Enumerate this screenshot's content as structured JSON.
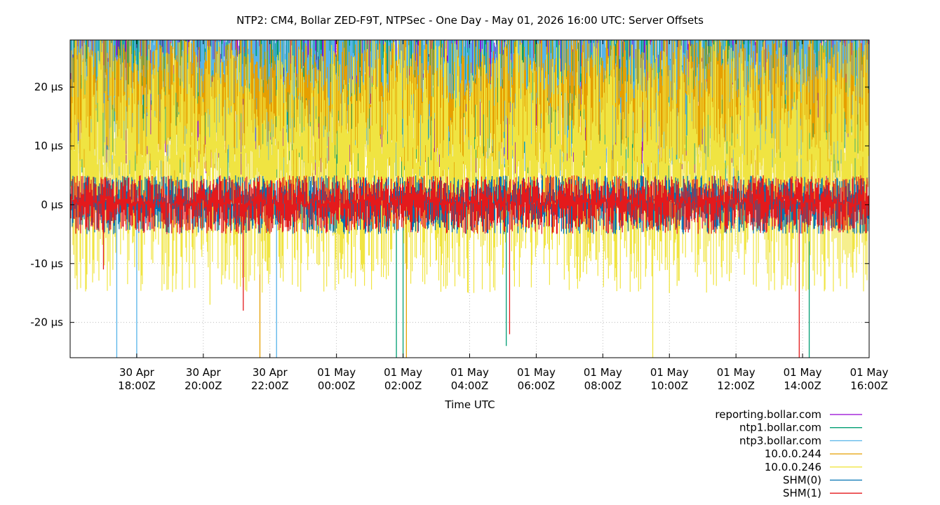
{
  "chart_data": {
    "type": "line",
    "title": "NTP2: CM4, Bollar ZED-F9T, NTPSec - One Day - May 01, 2026 16:00 UTC: Server Offsets",
    "xlabel": "Time UTC",
    "ylabel": "",
    "x_range": [
      "2026-04-30T16:00Z",
      "2026-05-01T16:00Z"
    ],
    "ylim": [
      -26,
      28
    ],
    "y_unit": "µs",
    "grid": true,
    "legend_position": "bottom-right",
    "x_ticks": [
      {
        "date": "30 Apr",
        "time": "18:00Z",
        "hours": 2
      },
      {
        "date": "30 Apr",
        "time": "20:00Z",
        "hours": 4
      },
      {
        "date": "30 Apr",
        "time": "22:00Z",
        "hours": 6
      },
      {
        "date": "01 May",
        "time": "00:00Z",
        "hours": 8
      },
      {
        "date": "01 May",
        "time": "02:00Z",
        "hours": 10
      },
      {
        "date": "01 May",
        "time": "04:00Z",
        "hours": 12
      },
      {
        "date": "01 May",
        "time": "06:00Z",
        "hours": 14
      },
      {
        "date": "01 May",
        "time": "08:00Z",
        "hours": 16
      },
      {
        "date": "01 May",
        "time": "10:00Z",
        "hours": 18
      },
      {
        "date": "01 May",
        "time": "12:00Z",
        "hours": 20
      },
      {
        "date": "01 May",
        "time": "14:00Z",
        "hours": 22
      },
      {
        "date": "01 May",
        "time": "16:00Z",
        "hours": 24
      }
    ],
    "y_ticks": [
      {
        "value": 20,
        "label": "20 µs"
      },
      {
        "value": 10,
        "label": "10 µs"
      },
      {
        "value": 0,
        "label": "0 µs"
      },
      {
        "value": -10,
        "label": "-10 µs"
      },
      {
        "value": -20,
        "label": "-20 µs"
      }
    ],
    "series": [
      {
        "name": "reporting.bollar.com",
        "color": "#9400d3",
        "band": [
          5,
          40
        ],
        "spike_down": [],
        "spike_down_hours": []
      },
      {
        "name": "ntp1.bollar.com",
        "color": "#009e73",
        "band": [
          4,
          36
        ],
        "spike_down": [
          -24,
          -26,
          -26,
          -26
        ],
        "spike_down_hours": [
          13.1,
          10.0,
          22.2,
          9.8
        ]
      },
      {
        "name": "ntp3.bollar.com",
        "color": "#56b4e9",
        "band": [
          4,
          36
        ],
        "spike_down": [
          -26,
          -26,
          -26
        ],
        "spike_down_hours": [
          1.4,
          2.0,
          6.2
        ]
      },
      {
        "name": "10.0.0.244",
        "color": "#e69f00",
        "band": [
          3,
          30
        ],
        "spike_down": [
          -26,
          -26
        ],
        "spike_down_hours": [
          5.7,
          10.1
        ]
      },
      {
        "name": "10.0.0.246",
        "color": "#f0e442",
        "band": [
          -15,
          28
        ],
        "spike_down": [
          -17,
          -26,
          -15,
          -13
        ],
        "spike_down_hours": [
          4.2,
          17.5,
          18.0,
          19.8
        ]
      },
      {
        "name": "SHM(0)",
        "color": "#0072b2",
        "band": [
          -5,
          5
        ],
        "spike_down": [],
        "spike_down_hours": []
      },
      {
        "name": "SHM(1)",
        "color": "#e41a1c",
        "band": [
          -5,
          5
        ],
        "spike_down": [
          -18,
          -22,
          -26,
          -11
        ],
        "spike_down_hours": [
          5.2,
          13.2,
          21.9,
          1.0
        ]
      }
    ]
  }
}
